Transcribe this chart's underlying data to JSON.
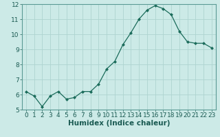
{
  "x": [
    0,
    1,
    2,
    3,
    4,
    5,
    6,
    7,
    8,
    9,
    10,
    11,
    12,
    13,
    14,
    15,
    16,
    17,
    18,
    19,
    20,
    21,
    22,
    23
  ],
  "y": [
    6.2,
    5.9,
    5.2,
    5.9,
    6.2,
    5.7,
    5.8,
    6.2,
    6.2,
    6.7,
    7.7,
    8.2,
    9.3,
    10.1,
    11.0,
    11.6,
    11.9,
    11.7,
    11.3,
    10.2,
    9.5,
    9.4,
    9.4,
    9.1
  ],
  "xlabel": "Humidex (Indice chaleur)",
  "ylim": [
    5,
    12
  ],
  "xlim_min": -0.5,
  "xlim_max": 23.5,
  "yticks": [
    5,
    6,
    7,
    8,
    9,
    10,
    11,
    12
  ],
  "xticks": [
    0,
    1,
    2,
    3,
    4,
    5,
    6,
    7,
    8,
    9,
    10,
    11,
    12,
    13,
    14,
    15,
    16,
    17,
    18,
    19,
    20,
    21,
    22,
    23
  ],
  "line_color": "#1a6b5a",
  "marker_color": "#1a6b5a",
  "bg_color": "#cceae7",
  "grid_color": "#aed4d0",
  "tick_label_fontsize": 6.5,
  "xlabel_fontsize": 7.5
}
